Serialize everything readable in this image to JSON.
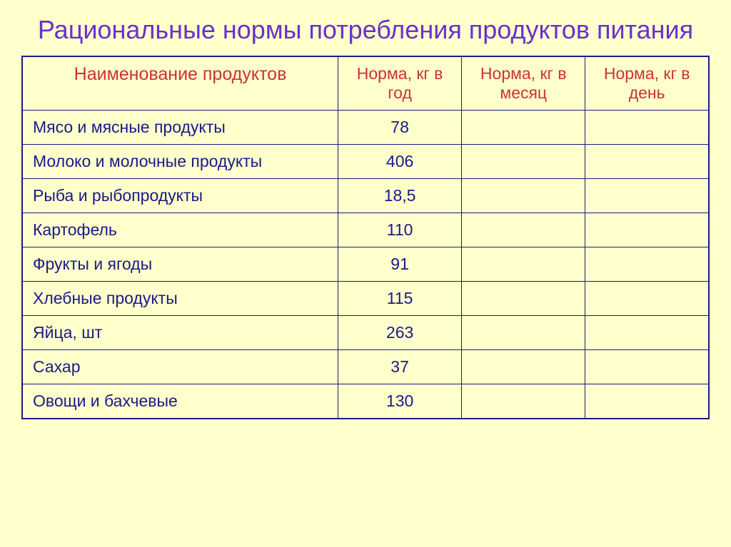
{
  "title": "Рациональные нормы потребления продуктов питания",
  "table": {
    "columns": [
      "Наименование продуктов",
      "Норма, кг в год",
      "Норма, кг в месяц",
      "Норма, кг в день"
    ],
    "rows": [
      {
        "name": "Мясо и мясные продукты",
        "year": "78",
        "month": "",
        "day": ""
      },
      {
        "name": "Молоко и молочные продукты",
        "year": "406",
        "month": "",
        "day": ""
      },
      {
        "name": "Рыба и рыбопродукты",
        "year": "18,5",
        "month": "",
        "day": ""
      },
      {
        "name": "Картофель",
        "year": "110",
        "month": "",
        "day": ""
      },
      {
        "name": "Фрукты и ягоды",
        "year": "91",
        "month": "",
        "day": ""
      },
      {
        "name": "Хлебные продукты",
        "year": "115",
        "month": "",
        "day": ""
      },
      {
        "name": "Яйца, шт",
        "year": "263",
        "month": "",
        "day": ""
      },
      {
        "name": "Сахар",
        "year": "37",
        "month": "",
        "day": ""
      },
      {
        "name": "Овощи и бахчевые",
        "year": "130",
        "month": "",
        "day": ""
      }
    ],
    "styling": {
      "background_color": "#ffffcc",
      "title_color": "#6633cc",
      "title_fontsize": 36,
      "header_text_color": "#cc3333",
      "cell_text_color": "#1a1a8a",
      "border_color": "#1a1a8a",
      "cell_fontsize": 23,
      "column_widths_pct": [
        46,
        18,
        18,
        18
      ]
    }
  }
}
